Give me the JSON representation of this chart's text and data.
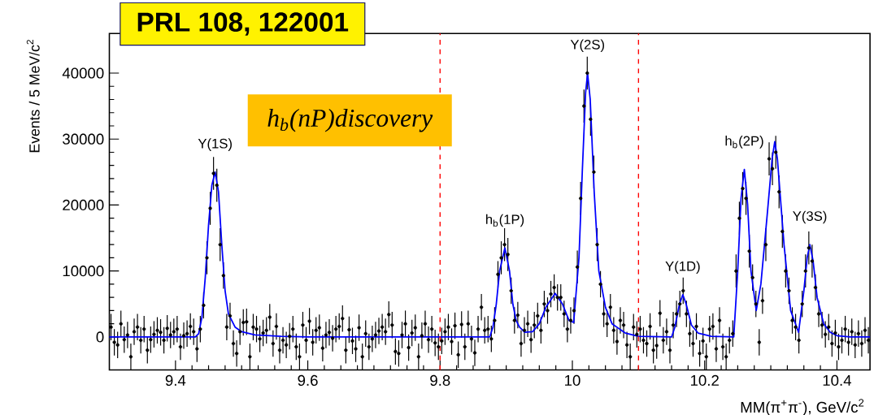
{
  "chart_data": {
    "type": "scatter",
    "xlabel": "MM(π$^{+}$π$^{-}$), GeV/c$^{2}$",
    "ylabel": "Events / 5 MeV/c$^{2}$",
    "xlim": [
      9.3,
      10.45
    ],
    "ylim": [
      -5000,
      46000
    ],
    "xticks": [
      9.4,
      9.6,
      9.8,
      10,
      10.2,
      10.4
    ],
    "yticks": [
      0,
      10000,
      20000,
      30000,
      40000
    ],
    "series": [
      {
        "marker": "circle",
        "color": "#000000",
        "x": [
          9.3025,
          9.3075,
          9.3125,
          9.3175,
          9.3225,
          9.3275,
          9.3325,
          9.3375,
          9.3425,
          9.3475,
          9.3525,
          9.3575,
          9.3625,
          9.3675,
          9.3725,
          9.3775,
          9.3825,
          9.3875,
          9.3925,
          9.3975,
          9.4025,
          9.4075,
          9.4125,
          9.4175,
          9.4225,
          9.4275,
          9.4325,
          9.4375,
          9.4425,
          9.4475,
          9.4525,
          9.4575,
          9.4625,
          9.4675,
          9.4725,
          9.4775,
          9.4825,
          9.4875,
          9.4925,
          9.4975,
          9.5025,
          9.5075,
          9.5125,
          9.5175,
          9.5225,
          9.5275,
          9.5325,
          9.5375,
          9.5425,
          9.5475,
          9.5525,
          9.5575,
          9.5625,
          9.5675,
          9.5725,
          9.5775,
          9.5825,
          9.5875,
          9.5925,
          9.5975,
          9.6025,
          9.6075,
          9.6125,
          9.6175,
          9.6225,
          9.6275,
          9.6325,
          9.6375,
          9.6425,
          9.6475,
          9.6525,
          9.6575,
          9.6625,
          9.6675,
          9.6725,
          9.6775,
          9.6825,
          9.6875,
          9.6925,
          9.6975,
          9.7025,
          9.7075,
          9.7125,
          9.7175,
          9.7225,
          9.7275,
          9.7325,
          9.7375,
          9.7425,
          9.7475,
          9.7525,
          9.7575,
          9.7625,
          9.7675,
          9.7725,
          9.7775,
          9.7825,
          9.7875,
          9.7925,
          9.7975,
          9.8025,
          9.8075,
          9.8125,
          9.8175,
          9.8225,
          9.8275,
          9.8325,
          9.8375,
          9.8425,
          9.8475,
          9.8525,
          9.8575,
          9.8625,
          9.8675,
          9.8725,
          9.8775,
          9.8825,
          9.8875,
          9.8925,
          9.8975,
          9.9025,
          9.9075,
          9.9125,
          9.9175,
          9.9225,
          9.9275,
          9.9325,
          9.9375,
          9.9425,
          9.9475,
          9.9525,
          9.9575,
          9.9625,
          9.9675,
          9.9725,
          9.9775,
          9.9825,
          9.9875,
          9.9925,
          9.9975,
          10.0025,
          10.0075,
          10.0125,
          10.0175,
          10.0225,
          10.0275,
          10.0325,
          10.0375,
          10.0425,
          10.0475,
          10.0525,
          10.0575,
          10.0625,
          10.0675,
          10.0725,
          10.0775,
          10.0825,
          10.0875,
          10.0925,
          10.0975,
          10.1025,
          10.1075,
          10.1125,
          10.1175,
          10.1225,
          10.1275,
          10.1325,
          10.1375,
          10.1425,
          10.1475,
          10.1525,
          10.1575,
          10.1625,
          10.1675,
          10.1725,
          10.1775,
          10.1825,
          10.1875,
          10.1925,
          10.1975,
          10.2025,
          10.2075,
          10.2125,
          10.2175,
          10.2225,
          10.2275,
          10.2325,
          10.2375,
          10.2425,
          10.2475,
          10.2525,
          10.2575,
          10.2625,
          10.2675,
          10.2725,
          10.2775,
          10.2825,
          10.2875,
          10.2925,
          10.2975,
          10.3025,
          10.3075,
          10.3125,
          10.3175,
          10.3225,
          10.3275,
          10.3325,
          10.3375,
          10.3425,
          10.3475,
          10.3525,
          10.3575,
          10.3625,
          10.3675,
          10.3725,
          10.3775,
          10.3825,
          10.3875,
          10.3925,
          10.3975,
          10.4025,
          10.4075,
          10.4125,
          10.4175,
          10.4225,
          10.4275,
          10.4325,
          10.4375,
          10.4425,
          10.4475
        ],
        "values": [
          1500,
          -800,
          -1200,
          2000,
          -400,
          300,
          -3000,
          800,
          1500,
          -500,
          1200,
          -2000,
          -400,
          400,
          1000,
          700,
          -500,
          1300,
          300,
          800,
          1200,
          -1500,
          200,
          500,
          1600,
          800,
          -1800,
          1200,
          4800,
          12000,
          19500,
          24800,
          23000,
          14000,
          9300,
          1500,
          3200,
          -1000,
          -2500,
          800,
          2200,
          2300,
          -3000,
          1500,
          1200,
          -300,
          600,
          1000,
          3000,
          -1000,
          1600,
          -2000,
          -500,
          -1200,
          100,
          1200,
          -1500,
          -3000,
          1800,
          -500,
          2400,
          -800,
          1000,
          1400,
          -1700,
          300,
          700,
          -200,
          1200,
          1600,
          2800,
          -2000,
          1100,
          -600,
          -1800,
          1400,
          -3000,
          500,
          -1500,
          -300,
          300,
          900,
          1500,
          800,
          3400,
          1800,
          -2200,
          -2500,
          300,
          2000,
          -1600,
          600,
          1400,
          -3000,
          200,
          2000,
          -400,
          1200,
          -900,
          -1500,
          -600,
          800,
          1500,
          -700,
          1700,
          -2700,
          1900,
          -1500,
          2000,
          -300,
          -2400,
          1200,
          4500,
          1000,
          1200,
          -300,
          2500,
          9500,
          12000,
          14000,
          12500,
          7000,
          2500,
          3300,
          -1000,
          1000,
          2000,
          -400,
          1800,
          3200,
          1000,
          5000,
          4000,
          6500,
          7500,
          6000,
          6000,
          3500,
          1200,
          2500,
          4000,
          10600,
          21000,
          35000,
          40000,
          33000,
          25000,
          14000,
          8000,
          3500,
          2000,
          4500,
          1000,
          -700,
          2500,
          1800,
          -1200,
          -3000,
          1500,
          400,
          1200,
          -500,
          -1000,
          1600,
          -2000,
          -1300,
          3600,
          -500,
          800,
          -2000,
          1800,
          3500,
          5000,
          7000,
          3500,
          500,
          -1000,
          1600,
          -2500,
          -600,
          -3000,
          1200,
          1600,
          -1800,
          2500,
          -1500,
          -3000,
          -500,
          500,
          10000,
          18000,
          22500,
          21000,
          13000,
          9000,
          5000,
          -800,
          5500,
          14000,
          27000,
          25500,
          28000,
          22000,
          16000,
          10000,
          7000,
          2500,
          1500,
          -500,
          5000,
          10000,
          13500,
          11500,
          7500,
          3500,
          1800,
          400,
          1500,
          -1000,
          600,
          -1500,
          -500,
          1200,
          -800,
          800,
          -1200,
          500,
          -1000,
          1000,
          -500
        ],
        "errors": [
          2000,
          2000,
          2000,
          2000,
          2000,
          2000,
          2000,
          2000,
          2000,
          2000,
          2000,
          2000,
          2000,
          2000,
          2000,
          2000,
          2000,
          2000,
          2000,
          2000,
          2000,
          2000,
          2000,
          2000,
          2000,
          2000,
          2000,
          2000,
          2000,
          2500,
          2500,
          2500,
          2500,
          2500,
          2000,
          2000,
          2000,
          2000,
          2000,
          2000,
          2000,
          2000,
          2000,
          2000,
          2000,
          2000,
          2000,
          2000,
          2000,
          2000,
          2000,
          2000,
          2000,
          2000,
          2000,
          2000,
          2000,
          2000,
          2000,
          2000,
          2000,
          2000,
          2000,
          2000,
          2000,
          2000,
          2000,
          2000,
          2000,
          2000,
          2000,
          2000,
          2000,
          2000,
          2000,
          2000,
          2000,
          2000,
          2000,
          2000,
          2000,
          2000,
          2000,
          2000,
          2000,
          2000,
          2000,
          2000,
          2000,
          2000,
          2000,
          2000,
          2000,
          2000,
          2000,
          2000,
          2000,
          2000,
          2000,
          2000,
          2000,
          2000,
          2000,
          2000,
          2000,
          2000,
          2000,
          2000,
          2000,
          2000,
          2000,
          2000,
          2000,
          2000,
          2000,
          2000,
          2000,
          2000,
          2500,
          2500,
          2500,
          2000,
          2000,
          2000,
          2000,
          2000,
          2000,
          2000,
          2000,
          2000,
          2000,
          2000,
          2000,
          2000,
          2000,
          2000,
          2000,
          2000,
          2000,
          2000,
          2000,
          2500,
          2500,
          2500,
          2500,
          2500,
          2500,
          2500,
          2000,
          2000,
          2000,
          2000,
          2000,
          2000,
          2000,
          2000,
          2000,
          2000,
          2000,
          2000,
          2000,
          2000,
          2000,
          2000,
          2000,
          2000,
          2000,
          2000,
          2000,
          2000,
          2000,
          2000,
          2000,
          2000,
          2000,
          2000,
          2000,
          2000,
          2000,
          2000,
          2000,
          2000,
          2000,
          2000,
          2000,
          2000,
          2000,
          2000,
          2000,
          2500,
          2500,
          2500,
          2500,
          2500,
          2000,
          2000,
          2000,
          2000,
          2500,
          2500,
          2500,
          2500,
          2500,
          2500,
          2500,
          2000,
          2000,
          2000,
          2000,
          2000,
          2500,
          2500,
          2500,
          2000,
          2000,
          2000,
          2000,
          2000,
          2000,
          2000,
          2000,
          2000,
          2000,
          2000,
          2000,
          2000,
          2000,
          2000,
          2000,
          2000
        ]
      },
      {
        "type": "line",
        "marker": "none",
        "color": "#0000ff",
        "x": [
          9.3,
          9.43,
          9.435,
          9.44,
          9.445,
          9.45,
          9.455,
          9.46,
          9.465,
          9.47,
          9.475,
          9.48,
          9.49,
          9.5,
          9.52,
          9.56,
          9.6,
          9.875,
          9.88,
          9.885,
          9.89,
          9.898,
          9.905,
          9.91,
          9.915,
          9.92,
          9.928,
          9.94,
          9.95,
          9.96,
          9.974,
          9.985,
          9.995,
          10.002,
          10.01,
          10.015,
          10.02,
          10.023,
          10.027,
          10.033,
          10.04,
          10.05,
          10.06,
          10.08,
          10.1,
          10.15,
          10.155,
          10.162,
          10.167,
          10.172,
          10.18,
          10.19,
          10.21,
          10.244,
          10.25,
          10.255,
          10.26,
          10.265,
          10.27,
          10.278,
          10.285,
          10.295,
          10.302,
          10.306,
          10.31,
          10.32,
          10.33,
          10.342,
          10.35,
          10.355,
          10.359,
          10.364,
          10.37,
          10.38,
          10.39,
          10.4,
          10.42,
          10.45
        ],
        "values": [
          0,
          0,
          500,
          3000,
          9000,
          17000,
          23000,
          25000,
          22000,
          14000,
          7000,
          3500,
          1500,
          800,
          300,
          100,
          0,
          0,
          1500,
          5000,
          10000,
          13500,
          10000,
          5000,
          2500,
          1500,
          700,
          800,
          2000,
          4500,
          6600,
          5000,
          2500,
          2200,
          12000,
          25000,
          37000,
          40000,
          36000,
          22000,
          10000,
          4500,
          2000,
          600,
          100,
          0,
          1500,
          5000,
          6400,
          5000,
          1800,
          600,
          100,
          0,
          10000,
          21000,
          25400,
          20000,
          10000,
          4000,
          8000,
          19000,
          27000,
          29600,
          27000,
          14000,
          4000,
          700,
          7000,
          12000,
          14000,
          11500,
          6000,
          2000,
          700,
          200,
          0,
          0
        ]
      }
    ],
    "ref_lines": [
      {
        "axis": "x",
        "value": 9.8,
        "color": "#ff0000",
        "line_style": "dashed"
      },
      {
        "axis": "x",
        "value": 10.1,
        "color": "#ff0000",
        "line_style": "dashed"
      }
    ],
    "annotations": [
      "PRL 108, 122001",
      "h$_{b}$(nP)discovery",
      {
        "text": "Υ(1S)",
        "x": 9.46,
        "y": 25000
      },
      {
        "text": "h$_{b}$(1P)",
        "x": 9.898,
        "y": 13500
      },
      {
        "text": "Υ(2S)",
        "x": 10.023,
        "y": 40000
      },
      {
        "text": "Υ(1D)",
        "x": 10.167,
        "y": 6400
      },
      {
        "text": "h$_{b}$(2P)",
        "x": 10.26,
        "y": 25400
      },
      {
        "text": "Υ(3S)",
        "x": 10.359,
        "y": 14000
      }
    ],
    "grid": false
  }
}
